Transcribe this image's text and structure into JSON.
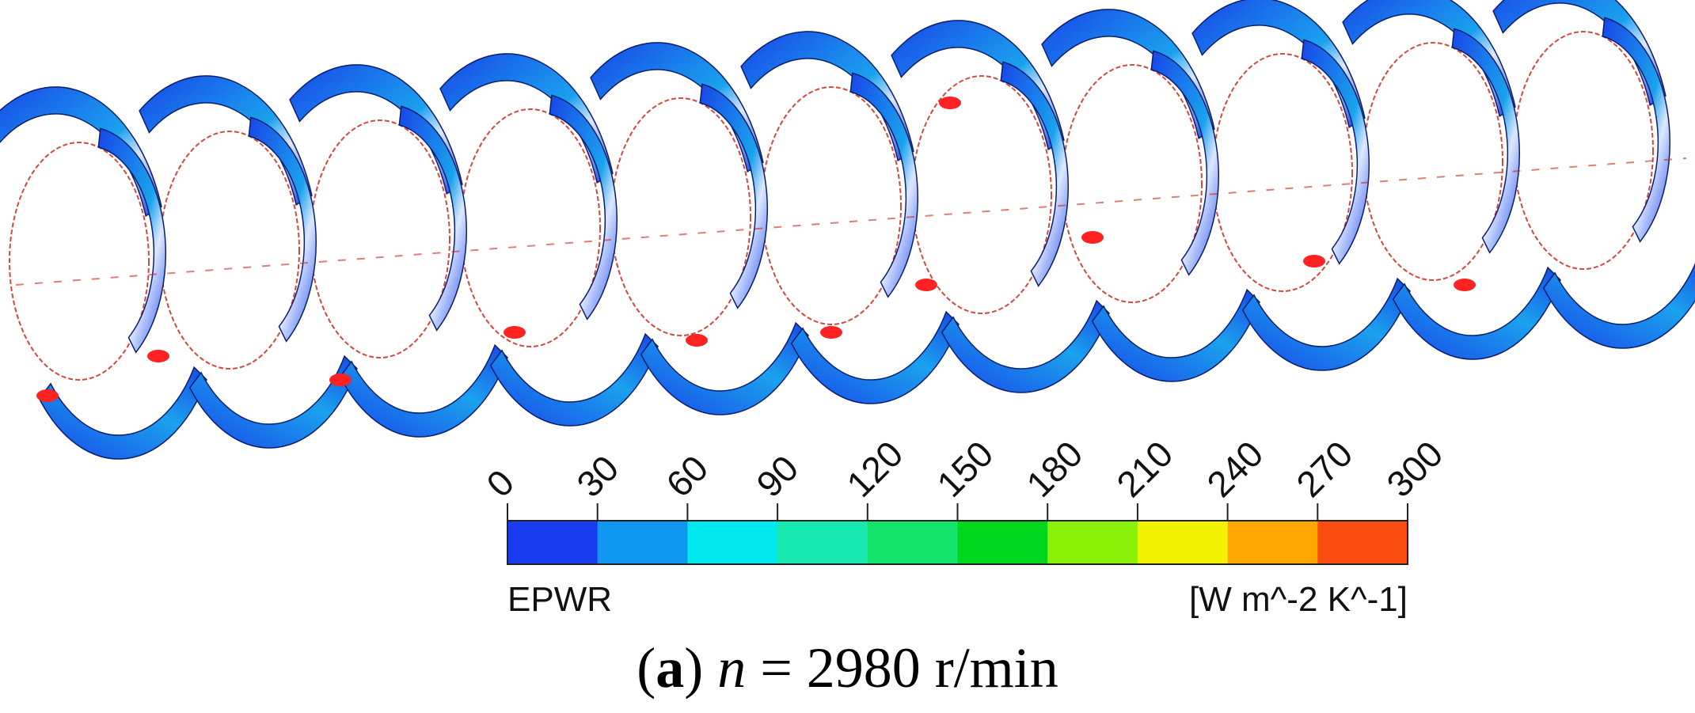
{
  "legend": {
    "variable": "EPWR",
    "unit": "[W m^-2 K^-1]",
    "ticks": [
      "0",
      "30",
      "60",
      "90",
      "120",
      "150",
      "180",
      "210",
      "240",
      "270",
      "300"
    ],
    "colors": [
      "#1a3cf0",
      "#0f96ee",
      "#00e8ee",
      "#17e8b0",
      "#14e46c",
      "#00d61e",
      "#8cf20a",
      "#f2f200",
      "#ffa600",
      "#fb4e10"
    ]
  },
  "caption": {
    "label": "a",
    "open_paren": "(",
    "close_paren": ")",
    "variable": "n",
    "rest": " = 2980 r/min"
  },
  "scene": {
    "blade_color": "#1846e8",
    "blade_light_color": "#1aa2ee",
    "highlight_color": "#dfe8ff",
    "hot_spot_color": "#ff2222",
    "hub_outline_color": "#c82a1e"
  }
}
